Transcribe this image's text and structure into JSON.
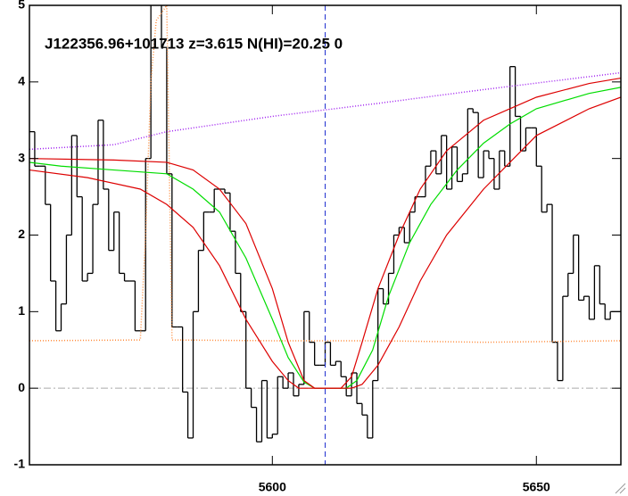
{
  "chart_data": {
    "type": "spectrum",
    "title": "J122356.96+101713 z=3.615 N(HI)=20.25 0",
    "xlim": [
      5554,
      5666
    ],
    "ylim": [
      -1,
      5
    ],
    "xticks": [
      5600,
      5650
    ],
    "yticks": [
      -1,
      0,
      1,
      2,
      3,
      4,
      5
    ],
    "vline": 5610,
    "hline": 0,
    "series": [
      {
        "style": "step",
        "color": "#000000",
        "x": [
          5554,
          5555,
          5556,
          5557,
          5558,
          5559,
          5560,
          5561,
          5562,
          5563,
          5564,
          5565,
          5566,
          5567,
          5568,
          5569,
          5570,
          5571,
          5572,
          5573,
          5574,
          5575,
          5576,
          5577,
          5578,
          5579,
          5580,
          5581,
          5582,
          5583,
          5584,
          5585,
          5586,
          5587,
          5588,
          5589,
          5590,
          5591,
          5592,
          5593,
          5594,
          5595,
          5596,
          5597,
          5598,
          5599,
          5600,
          5601,
          5602,
          5603,
          5604,
          5605,
          5606,
          5607,
          5608,
          5609,
          5610,
          5611,
          5612,
          5613,
          5614,
          5615,
          5616,
          5617,
          5618,
          5619,
          5620,
          5621,
          5622,
          5623,
          5624,
          5625,
          5626,
          5627,
          5628,
          5629,
          5630,
          5631,
          5632,
          5633,
          5634,
          5635,
          5636,
          5637,
          5638,
          5639,
          5640,
          5641,
          5642,
          5643,
          5644,
          5645,
          5646,
          5647,
          5648,
          5649,
          5650,
          5651,
          5652,
          5653,
          5654,
          5655,
          5656,
          5657,
          5658,
          5659,
          5660,
          5661,
          5662,
          5663,
          5664,
          5665
        ],
        "values": [
          3.35,
          2.9,
          2.9,
          2.4,
          1.4,
          0.75,
          1.1,
          2.0,
          3.3,
          2.5,
          1.4,
          1.5,
          2.4,
          3.5,
          2.6,
          1.8,
          2.3,
          1.5,
          1.4,
          1.4,
          0.75,
          0.75,
          3.0,
          5.2,
          5.2,
          4.45,
          2.8,
          0.8,
          0.8,
          -0.05,
          -0.65,
          1.0,
          1.8,
          2.3,
          2.3,
          2.6,
          2.6,
          2.55,
          2.05,
          1.5,
          1.0,
          0.0,
          -0.25,
          -0.7,
          0.1,
          -0.65,
          -0.6,
          0.15,
          0.0,
          0.2,
          -0.1,
          0.05,
          1.0,
          0.6,
          0.3,
          0.3,
          0.6,
          0.3,
          0.35,
          0.15,
          -0.1,
          0.2,
          -0.2,
          -0.35,
          -0.65,
          0.1,
          1.3,
          1.1,
          1.5,
          2.0,
          2.1,
          1.9,
          2.3,
          2.5,
          2.5,
          2.9,
          3.1,
          2.8,
          3.3,
          2.6,
          3.15,
          2.7,
          2.8,
          3.65,
          3.6,
          2.75,
          3.1,
          3.0,
          2.6,
          3.1,
          2.9,
          4.2,
          3.55,
          3.1,
          3.4,
          3.4,
          2.9,
          2.3,
          2.4,
          0.6,
          0.1,
          1.2,
          1.5,
          2.0,
          1.15,
          1.2,
          0.9,
          1.6,
          1.1,
          0.9,
          1.0,
          1.0
        ]
      },
      {
        "style": "dotted",
        "color": "#ff8c3c",
        "x": [
          5554,
          5575,
          5576,
          5577,
          5578,
          5580,
          5581,
          5600,
          5620,
          5640,
          5666
        ],
        "values": [
          0.62,
          0.63,
          2.0,
          4.0,
          4.8,
          5.0,
          0.63,
          0.62,
          0.62,
          0.6,
          0.62
        ]
      },
      {
        "style": "dotted",
        "color": "#a020f0",
        "x": [
          5554,
          5570,
          5580,
          5600,
          5620,
          5640,
          5666
        ],
        "values": [
          3.12,
          3.18,
          3.35,
          3.55,
          3.72,
          3.9,
          4.12
        ]
      },
      {
        "style": "solid",
        "color": "#00dd00",
        "x": [
          5554,
          5560,
          5570,
          5580,
          5585,
          5590,
          5595,
          5600,
          5603,
          5606,
          5608,
          5614,
          5616,
          5619,
          5622,
          5626,
          5630,
          5635,
          5640,
          5645,
          5650,
          5660,
          5666
        ],
        "values": [
          2.95,
          2.9,
          2.85,
          2.8,
          2.6,
          2.3,
          1.7,
          0.9,
          0.4,
          0.08,
          0.0,
          0.0,
          0.1,
          0.5,
          1.2,
          1.9,
          2.4,
          2.85,
          3.2,
          3.45,
          3.65,
          3.85,
          3.93
        ]
      },
      {
        "style": "solid",
        "color": "#dd0000",
        "x": [
          5554,
          5570,
          5580,
          5585,
          5590,
          5595,
          5600,
          5603,
          5606,
          5608,
          5613,
          5615,
          5617,
          5620,
          5624,
          5628,
          5633,
          5640,
          5650,
          5660,
          5666
        ],
        "values": [
          3.0,
          2.98,
          2.95,
          2.85,
          2.6,
          2.15,
          1.3,
          0.6,
          0.1,
          0.0,
          0.0,
          0.15,
          0.6,
          1.3,
          2.0,
          2.6,
          3.1,
          3.5,
          3.8,
          3.98,
          4.05
        ]
      },
      {
        "style": "solid",
        "color": "#dd0000",
        "x": [
          5554,
          5565,
          5575,
          5580,
          5585,
          5590,
          5595,
          5600,
          5603,
          5605,
          5615,
          5617,
          5620,
          5624,
          5628,
          5633,
          5640,
          5650,
          5660,
          5666
        ],
        "values": [
          2.85,
          2.75,
          2.6,
          2.4,
          2.1,
          1.6,
          0.9,
          0.35,
          0.1,
          0.0,
          0.0,
          0.05,
          0.3,
          0.8,
          1.4,
          2.0,
          2.6,
          3.3,
          3.65,
          3.8
        ]
      }
    ]
  }
}
